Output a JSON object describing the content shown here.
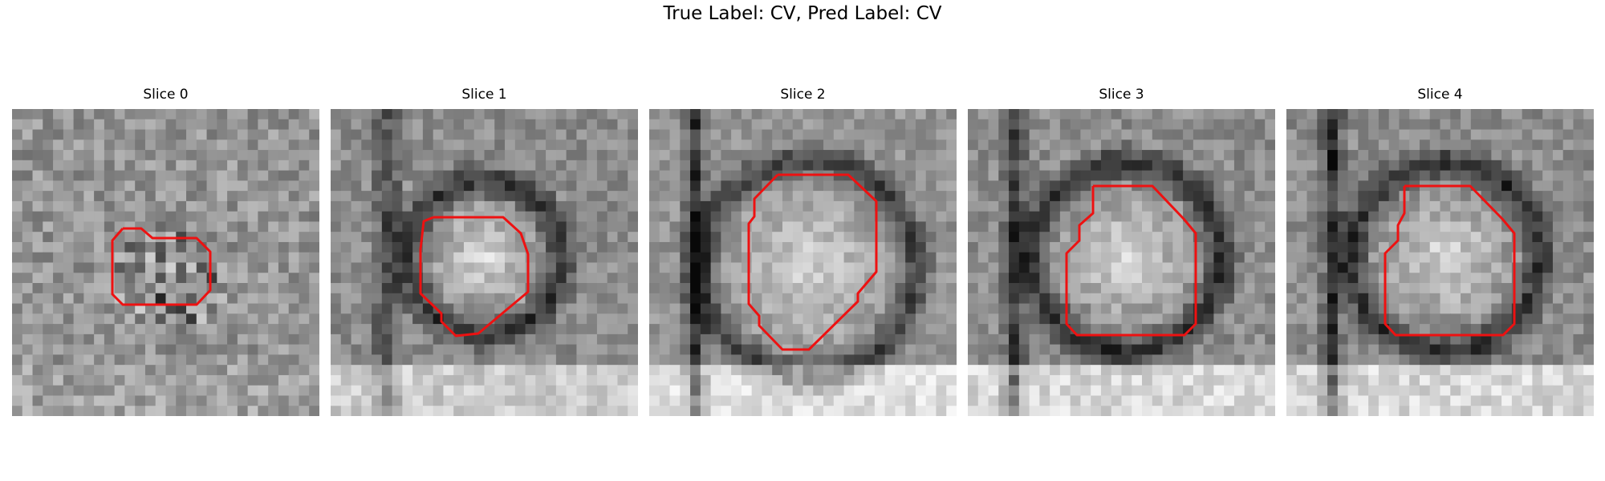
{
  "figure": {
    "title": "True Label: CV, Pred Label: CV",
    "contour_color": "#ee1111"
  },
  "slices": [
    {
      "title": "Slice 0"
    },
    {
      "title": "Slice 1"
    },
    {
      "title": "Slice 2"
    },
    {
      "title": "Slice 3"
    },
    {
      "title": "Slice 4"
    }
  ]
}
